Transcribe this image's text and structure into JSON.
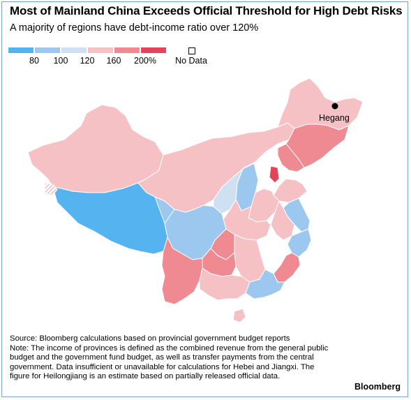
{
  "header": {
    "title": "Most of Mainland China Exceeds Official Threshold for High Debt Risks",
    "subtitle": "A majority of regions have debt-income ratio over 120%"
  },
  "legend": {
    "bins": [
      {
        "color": "#55b3ef",
        "name": "below 80"
      },
      {
        "color": "#9cc8ef",
        "name": "80-100"
      },
      {
        "color": "#cfe0f2",
        "name": "100-120"
      },
      {
        "color": "#f6c1c4",
        "name": "120-160"
      },
      {
        "color": "#ef8a92",
        "name": "160-200"
      },
      {
        "color": "#e2455a",
        "name": "over 200"
      }
    ],
    "ticks": [
      "80",
      "100",
      "120",
      "160",
      "200%"
    ],
    "no_data_label": "No Data"
  },
  "map": {
    "colors": {
      "low": "#55b3ef",
      "mid_low": "#9cc8ef",
      "light_blue": "#cfe0f2",
      "pink": "#f6c1c4",
      "red_mid": "#ef8a92",
      "red_dark": "#e2455a",
      "no_data": "#ffffff",
      "border": "#ffffff"
    },
    "city": {
      "name": "Hegang"
    }
  },
  "notes": {
    "source": "Source: Bloomberg calculations based on provincial government budget reports",
    "note": "Note: The income of provinces is defined as the combined revenue from the general public budget and the government fund budget, as well as transfer payments from the central government. Data insufficient or unavailable for calculations for Hebei and Jiangxi. The figure for Heilongjiang is an estimate based on partially released official data."
  },
  "brand": "Bloomberg"
}
